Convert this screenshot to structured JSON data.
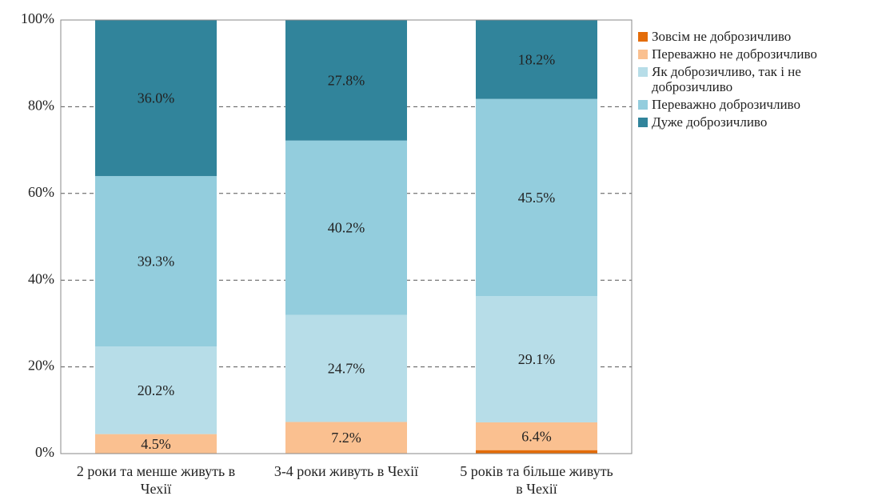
{
  "chart_data": {
    "type": "stacked_bar",
    "categories": [
      "2 роки та менше живуть в Чехії",
      "3-4 роки живуть в Чехії",
      "5 років та більше живуть в Чехії"
    ],
    "series": [
      {
        "name": "Зовсім не доброзичливо",
        "color": "#e36c09",
        "values": [
          0,
          0.1,
          0.8
        ]
      },
      {
        "name": "Переважно не доброзичливо",
        "color": "#fac090",
        "values": [
          4.5,
          7.2,
          6.4
        ],
        "value_labels": [
          "4.5%",
          "7.2%",
          "6.4%"
        ]
      },
      {
        "name": "Як доброзичливо, так і не доброзичливо",
        "color": "#b7dde8",
        "values": [
          20.2,
          24.7,
          29.1
        ],
        "value_labels": [
          "20.2%",
          "24.7%",
          "29.1%"
        ]
      },
      {
        "name": "Переважно доброзичливо",
        "color": "#93cddd",
        "values": [
          39.3,
          40.2,
          45.5
        ],
        "value_labels": [
          "39.3%",
          "40.2%",
          "45.5%"
        ]
      },
      {
        "name": "Дуже доброзичливо",
        "color": "#31849b",
        "values": [
          36.0,
          27.8,
          18.2
        ],
        "value_labels": [
          "36.0%",
          "27.8%",
          "18.2%"
        ]
      }
    ],
    "ylim": [
      0,
      100
    ],
    "yticks": [
      {
        "value": 0,
        "label": "0%"
      },
      {
        "value": 20,
        "label": "20%"
      },
      {
        "value": 40,
        "label": "40%"
      },
      {
        "value": 60,
        "label": "60%"
      },
      {
        "value": 80,
        "label": "80%"
      },
      {
        "value": 100,
        "label": "100%"
      }
    ],
    "grid": true,
    "legend": "right"
  }
}
